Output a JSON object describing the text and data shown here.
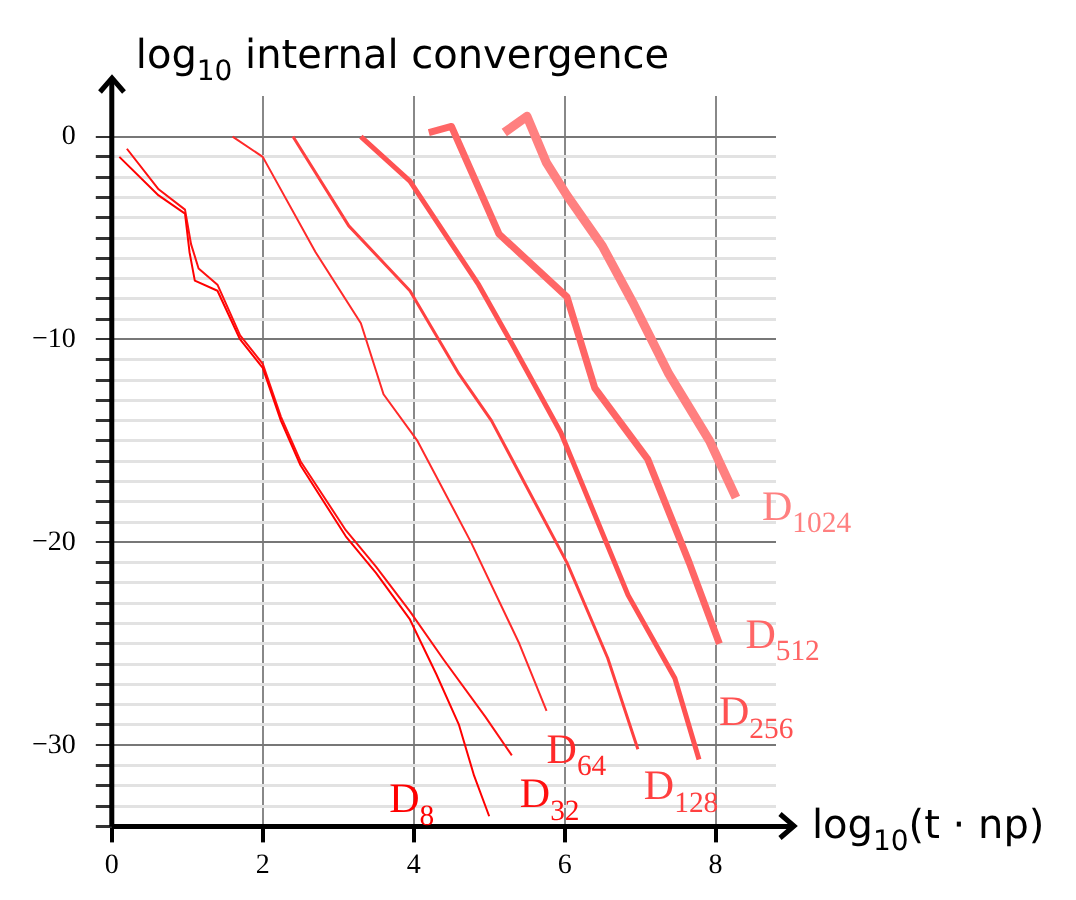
{
  "chart_data": {
    "type": "line",
    "xlabel": "log$_{10}$(t · np)",
    "ylabel": "log$_{10}$ internal convergence",
    "xlim": [
      0,
      8.8
    ],
    "ylim": [
      -34,
      2
    ],
    "xticks": [
      0,
      2,
      4,
      6,
      8
    ],
    "yticks": [
      {
        "value": 0,
        "label": "0"
      },
      {
        "value": -1,
        "label": null
      },
      {
        "value": -2,
        "label": null
      },
      {
        "value": -3,
        "label": null
      },
      {
        "value": -4,
        "label": null
      },
      {
        "value": -5,
        "label": null
      },
      {
        "value": -6,
        "label": null
      },
      {
        "value": -7,
        "label": null
      },
      {
        "value": -8,
        "label": null
      },
      {
        "value": -9,
        "label": null
      },
      {
        "value": -10,
        "label": "−10"
      },
      {
        "value": -11,
        "label": null
      },
      {
        "value": -12,
        "label": null
      },
      {
        "value": -13,
        "label": null
      },
      {
        "value": -14,
        "label": null
      },
      {
        "value": -15,
        "label": null
      },
      {
        "value": -16,
        "label": null
      },
      {
        "value": -17,
        "label": null
      },
      {
        "value": -18,
        "label": null
      },
      {
        "value": -19,
        "label": null
      },
      {
        "value": -20,
        "label": "−20"
      },
      {
        "value": -21,
        "label": null
      },
      {
        "value": -22,
        "label": null
      },
      {
        "value": -23,
        "label": null
      },
      {
        "value": -24,
        "label": null
      },
      {
        "value": -25,
        "label": null
      },
      {
        "value": -26,
        "label": null
      },
      {
        "value": -27,
        "label": null
      },
      {
        "value": -28,
        "label": null
      },
      {
        "value": -29,
        "label": null
      },
      {
        "value": -30,
        "label": "−30"
      },
      {
        "value": -31,
        "label": null
      },
      {
        "value": -32,
        "label": null
      },
      {
        "value": -33,
        "label": null
      },
      {
        "value": -34,
        "label": null
      }
    ],
    "grid": true,
    "legend": false,
    "marker": "none",
    "line_style": "solid",
    "series": [
      {
        "name": "D$_{8}$",
        "color": "#ff0000",
        "x": [
          0.1,
          0.62,
          0.97,
          1.03,
          1.1,
          1.4,
          1.7,
          2.0,
          2.24,
          2.5,
          3.1,
          3.5,
          3.95,
          4.3,
          4.6,
          4.8,
          5.0
        ],
        "values": [
          -1,
          -2.9,
          -3.8,
          -5.7,
          -7.1,
          -7.6,
          -10,
          -11.4,
          -14,
          -16.2,
          -19.7,
          -21.5,
          -23.8,
          -26.5,
          -29,
          -31.5,
          -33.5
        ]
      },
      {
        "name": "D$_{32}$",
        "color": "#ff1010",
        "x": [
          0.2,
          0.62,
          0.97,
          1.05,
          1.15,
          1.4,
          1.7,
          2.0,
          2.24,
          2.5,
          3.1,
          3.5,
          3.95,
          4.4,
          4.95,
          5.3
        ],
        "values": [
          -0.6,
          -2.6,
          -3.6,
          -5.3,
          -6.5,
          -7.3,
          -9.8,
          -11.2,
          -13.8,
          -16,
          -19.4,
          -21.2,
          -23.4,
          -25.8,
          -28.6,
          -30.5
        ]
      },
      {
        "name": "D$_{64}$",
        "color": "#ff2a2a",
        "x": [
          1.6,
          2.0,
          2.7,
          3.3,
          3.6,
          4.05,
          4.76,
          5.4,
          5.76
        ],
        "values": [
          0,
          -1,
          -5.7,
          -9.2,
          -12.7,
          -15,
          -20,
          -25,
          -28.3
        ]
      },
      {
        "name": "D$_{128}$",
        "color": "#ff4040",
        "x": [
          2.4,
          3.14,
          3.95,
          4.6,
          5.03,
          6.03,
          6.57,
          6.97
        ],
        "values": [
          0,
          -4.4,
          -7.6,
          -11.7,
          -14,
          -21,
          -25.7,
          -30.2
        ]
      },
      {
        "name": "D$_{256}$",
        "color": "#ff5252",
        "x": [
          3.3,
          3.95,
          4.86,
          5.3,
          5.95,
          6.84,
          7.46,
          7.78
        ],
        "values": [
          0,
          -2.2,
          -7.3,
          -10.2,
          -14.6,
          -22.6,
          -26.7,
          -30.7
        ]
      },
      {
        "name": "D$_{512}$",
        "color": "#ff6666",
        "x": [
          4.2,
          4.5,
          5.13,
          6.03,
          6.4,
          7.1,
          7.65,
          8.05
        ],
        "values": [
          0.2,
          0.5,
          -4.8,
          -7.9,
          -12.4,
          -15.9,
          -21,
          -25
        ]
      },
      {
        "name": "D$_{1024}$",
        "color": "#ff8080",
        "x": [
          5.2,
          5.5,
          5.76,
          6.03,
          6.5,
          6.92,
          7.38,
          7.92,
          8.27
        ],
        "values": [
          0.2,
          1.0,
          -1.3,
          -2.9,
          -5.4,
          -8.3,
          -11.7,
          -15,
          -17.8
        ]
      }
    ]
  }
}
